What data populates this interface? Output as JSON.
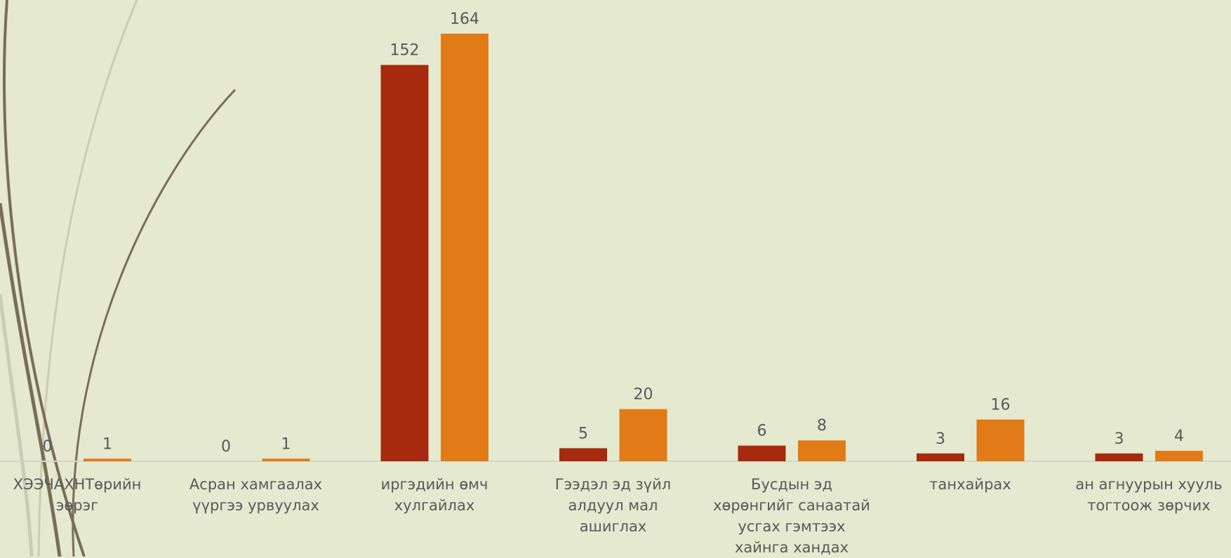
{
  "chart_data": {
    "type": "bar",
    "categories": [
      "ХЭЭЧАХНТөрийн\nэөрэг",
      "Асран хамгаалах\nүүргээ урвуулах",
      "иргэдийн өмч\nхулгайлах",
      "Гээдэл эд зүйл\nалдуул мал\nашиглах",
      "Бусдын эд\nхөрөнгийг санаатай\nусгах гэмтээх\nхайнга хандах",
      "танхайрах",
      "ан агнуурын хууль\nтогтоож зөрчих"
    ],
    "series": [
      {
        "color": "#a52a0e",
        "values": [
          0,
          0,
          152,
          5,
          6,
          3,
          3
        ]
      },
      {
        "color": "#e07b18",
        "values": [
          1,
          1,
          164,
          20,
          8,
          16,
          4
        ]
      }
    ]
  }
}
